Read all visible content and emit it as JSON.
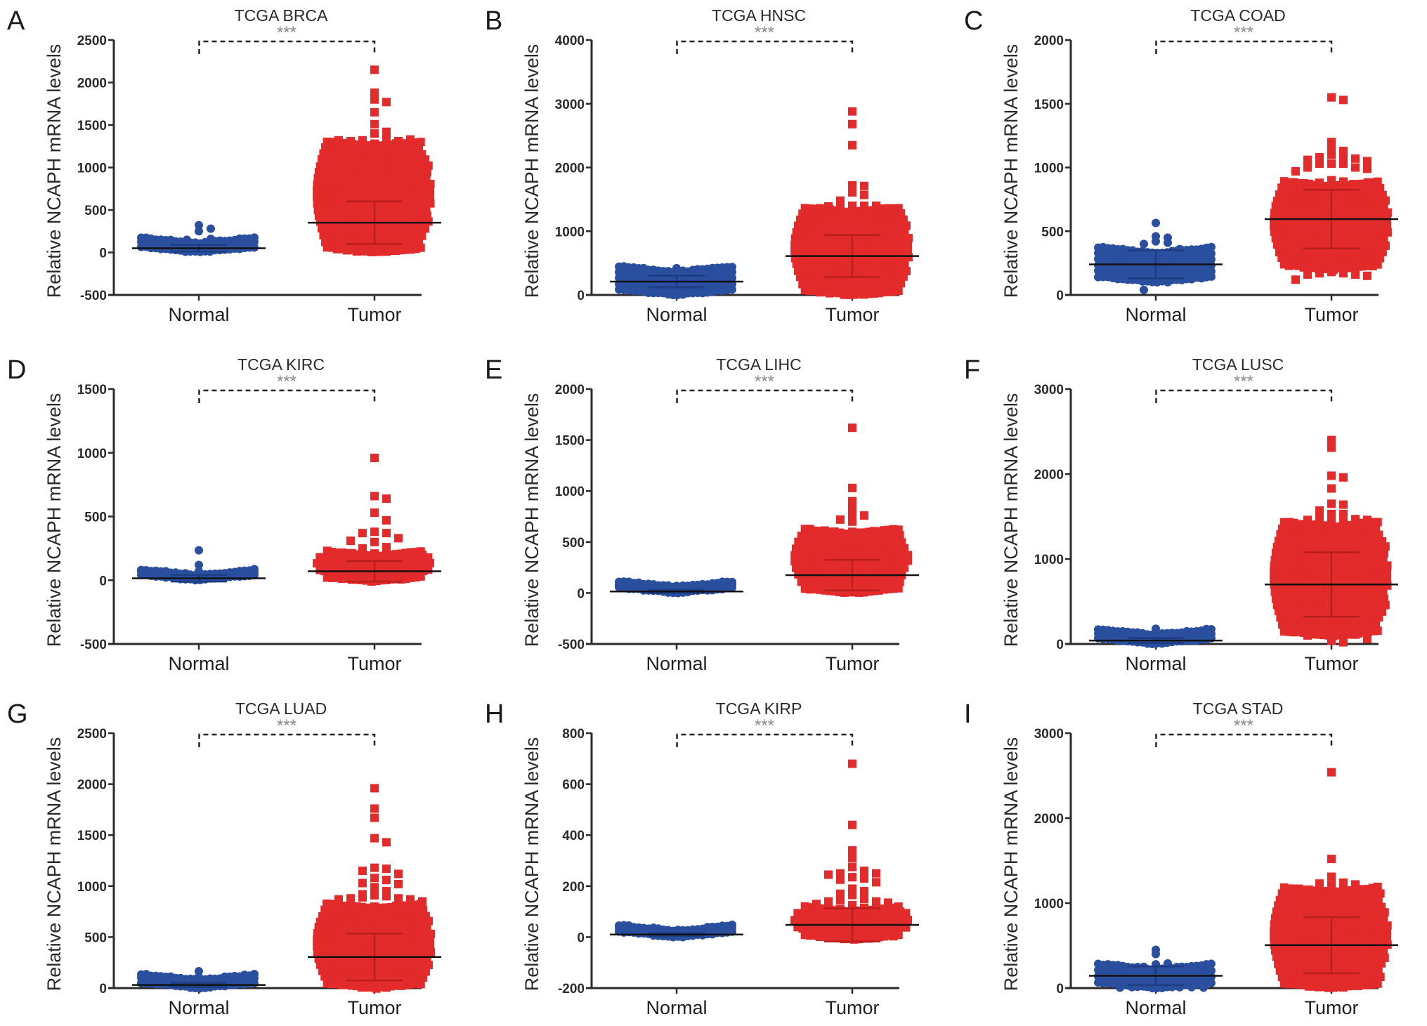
{
  "figure": {
    "y_axis_label": "Relative NCAPH mRNA levels",
    "significance": "***",
    "colors": {
      "normal": "#2a4f9e",
      "tumor": "#e32b2b",
      "axis": "#2b2b2b",
      "mean": "#111111"
    }
  },
  "chart_data": [
    {
      "panel": "A",
      "type": "scatter",
      "title": "TCGA BRCA",
      "xlabel": "",
      "ylabel": "Relative NCAPH mRNA levels",
      "categories": [
        "Normal",
        "Tumor"
      ],
      "ylim": [
        -500,
        2500
      ],
      "yticks": [
        -500,
        0,
        500,
        1000,
        1500,
        2000,
        2500
      ],
      "significance": "***",
      "series": [
        {
          "name": "Normal",
          "marker": "circle",
          "mean": 50,
          "sd": 40,
          "bulk_min": 0,
          "bulk_max": 110,
          "outliers": [
            320,
            280,
            250,
            160,
            150
          ]
        },
        {
          "name": "Tumor",
          "marker": "square",
          "mean": 350,
          "sd": 250,
          "bulk_min": 0,
          "bulk_max": 1250,
          "outliers": [
            2150,
            1880,
            1800,
            1770,
            1650,
            1510,
            1420,
            1400,
            1340,
            1320,
            1310,
            1310,
            1280,
            1330,
            1320,
            1240,
            1220,
            1180,
            1170
          ]
        }
      ]
    },
    {
      "panel": "B",
      "type": "scatter",
      "title": "TCGA HNSC",
      "xlabel": "",
      "ylabel": "Relative NCAPH mRNA levels",
      "categories": [
        "Normal",
        "Tumor"
      ],
      "ylim": [
        0,
        4000
      ],
      "yticks": [
        0,
        1000,
        2000,
        3000,
        4000
      ],
      "significance": "***",
      "series": [
        {
          "name": "Normal",
          "marker": "circle",
          "mean": 210,
          "sd": 90,
          "bulk_min": 0,
          "bulk_max": 360,
          "outliers": [
            420,
            380
          ]
        },
        {
          "name": "Tumor",
          "marker": "square",
          "mean": 610,
          "sd": 330,
          "bulk_min": 0,
          "bulk_max": 1300,
          "outliers": [
            2880,
            2680,
            2350,
            1720,
            1710,
            1610,
            1570,
            1480,
            1400,
            1400,
            1400,
            1400,
            1390
          ]
        }
      ]
    },
    {
      "panel": "C",
      "type": "scatter",
      "title": "TCGA COAD",
      "xlabel": "",
      "ylabel": "Relative NCAPH mRNA levels",
      "categories": [
        "Normal",
        "Tumor"
      ],
      "ylim": [
        0,
        2000
      ],
      "yticks": [
        0,
        500,
        1000,
        1500,
        2000
      ],
      "significance": "***",
      "series": [
        {
          "name": "Normal",
          "marker": "circle",
          "mean": 240,
          "sd": 110,
          "bulk_min": 100,
          "bulk_max": 330,
          "outliers": [
            565,
            460,
            450,
            420,
            410,
            400,
            360,
            320,
            320,
            300,
            300,
            290,
            290,
            280,
            250,
            120,
            110,
            100,
            40
          ]
        },
        {
          "name": "Tumor",
          "marker": "square",
          "mean": 595,
          "sd": 230,
          "bulk_min": 200,
          "bulk_max": 850,
          "outliers": [
            1550,
            1530,
            1200,
            1150,
            1130,
            1100,
            1080,
            1080,
            1070,
            1060,
            1050,
            1030,
            1030,
            1030,
            1000,
            1000,
            990,
            970,
            900,
            890,
            880,
            880,
            880,
            870,
            870,
            860,
            180,
            170,
            170,
            160,
            160,
            150,
            120
          ]
        }
      ]
    },
    {
      "panel": "D",
      "type": "scatter",
      "title": "TCGA KIRC",
      "xlabel": "",
      "ylabel": "Relative NCAPH mRNA levels",
      "categories": [
        "Normal",
        "Tumor"
      ],
      "ylim": [
        -500,
        1500
      ],
      "yticks": [
        -500,
        0,
        500,
        1000,
        1500
      ],
      "significance": "***",
      "series": [
        {
          "name": "Normal",
          "marker": "circle",
          "mean": 15,
          "sd": 25,
          "bulk_min": 0,
          "bulk_max": 40,
          "outliers": [
            235,
            120,
            70
          ]
        },
        {
          "name": "Tumor",
          "marker": "square",
          "mean": 70,
          "sd": 80,
          "bulk_min": -10,
          "bulk_max": 190,
          "outliers": [
            960,
            660,
            640,
            530,
            470,
            380,
            370,
            370,
            330,
            310,
            300,
            260,
            250,
            210,
            200,
            200,
            200,
            200,
            200,
            200,
            200
          ]
        }
      ]
    },
    {
      "panel": "E",
      "type": "scatter",
      "title": "TCGA LIHC",
      "xlabel": "",
      "ylabel": "Relative NCAPH mRNA levels",
      "categories": [
        "Normal",
        "Tumor"
      ],
      "ylim": [
        -500,
        2000
      ],
      "yticks": [
        -500,
        0,
        500,
        1000,
        1500,
        2000
      ],
      "significance": "***",
      "series": [
        {
          "name": "Normal",
          "marker": "circle",
          "mean": 15,
          "sd": 15,
          "bulk_min": 0,
          "bulk_max": 60,
          "outliers": [
            70,
            55
          ]
        },
        {
          "name": "Tumor",
          "marker": "square",
          "mean": 175,
          "sd": 150,
          "bulk_min": 0,
          "bulk_max": 580,
          "outliers": [
            1620,
            1030,
            900,
            830,
            780,
            760,
            720,
            700,
            600,
            590
          ]
        }
      ]
    },
    {
      "panel": "F",
      "type": "scatter",
      "title": "TCGA LUSC",
      "xlabel": "",
      "ylabel": "Relative NCAPH mRNA levels",
      "categories": [
        "Normal",
        "Tumor"
      ],
      "ylim": [
        0,
        3000
      ],
      "yticks": [
        0,
        1000,
        2000,
        3000
      ],
      "significance": "***",
      "series": [
        {
          "name": "Normal",
          "marker": "circle",
          "mean": 40,
          "sd": 30,
          "bulk_min": 0,
          "bulk_max": 110,
          "outliers": [
            180,
            110,
            100
          ]
        },
        {
          "name": "Tumor",
          "marker": "square",
          "mean": 700,
          "sd": 380,
          "bulk_min": 100,
          "bulk_max": 1380,
          "outliers": [
            2400,
            2310,
            1980,
            1960,
            1830,
            1650,
            1640,
            1570,
            1530,
            1530,
            1480,
            1470,
            1460,
            1460,
            1440,
            1430,
            1420,
            1410,
            1400,
            1380,
            140,
            130,
            120,
            110,
            100,
            60,
            40,
            20
          ]
        }
      ]
    },
    {
      "panel": "G",
      "type": "scatter",
      "title": "TCGA LUAD",
      "xlabel": "",
      "ylabel": "Relative NCAPH mRNA levels",
      "categories": [
        "Normal",
        "Tumor"
      ],
      "ylim": [
        0,
        2500
      ],
      "yticks": [
        0,
        500,
        1000,
        1500,
        2000,
        2500
      ],
      "significance": "***",
      "series": [
        {
          "name": "Normal",
          "marker": "circle",
          "mean": 30,
          "sd": 20,
          "bulk_min": 0,
          "bulk_max": 80,
          "outliers": [
            165,
            110,
            75
          ]
        },
        {
          "name": "Tumor",
          "marker": "square",
          "mean": 305,
          "sd": 230,
          "bulk_min": 0,
          "bulk_max": 780,
          "outliers": [
            1960,
            1760,
            1670,
            1470,
            1430,
            1180,
            1170,
            1150,
            1120,
            1080,
            1060,
            1030,
            1020,
            990,
            950,
            920,
            910,
            900,
            890,
            880,
            880,
            870,
            870,
            850,
            820,
            800
          ]
        }
      ]
    },
    {
      "panel": "H",
      "type": "scatter",
      "title": "TCGA KIRP",
      "xlabel": "",
      "ylabel": "Relative NCAPH mRNA levels",
      "categories": [
        "Normal",
        "Tumor"
      ],
      "ylim": [
        -200,
        800
      ],
      "yticks": [
        -200,
        0,
        200,
        400,
        600,
        800
      ],
      "significance": "***",
      "series": [
        {
          "name": "Normal",
          "marker": "circle",
          "mean": 10,
          "sd": 5,
          "bulk_min": 0,
          "bulk_max": 25,
          "outliers": [
            25,
            22
          ]
        },
        {
          "name": "Tumor",
          "marker": "square",
          "mean": 48,
          "sd": 65,
          "bulk_min": -10,
          "bulk_max": 100,
          "outliers": [
            680,
            440,
            340,
            310,
            275,
            260,
            250,
            250,
            245,
            235,
            230,
            225,
            215,
            190,
            180,
            170,
            165,
            150,
            145,
            140,
            140,
            135,
            130,
            125,
            115,
            110,
            110,
            110,
            110,
            105,
            100
          ]
        }
      ]
    },
    {
      "panel": "I",
      "type": "scatter",
      "title": "TCGA STAD",
      "xlabel": "",
      "ylabel": "Relative NCAPH mRNA levels",
      "categories": [
        "Normal",
        "Tumor"
      ],
      "ylim": [
        0,
        3000
      ],
      "yticks": [
        0,
        1000,
        2000,
        3000
      ],
      "significance": "***",
      "series": [
        {
          "name": "Normal",
          "marker": "circle",
          "mean": 145,
          "sd": 110,
          "bulk_min": 0,
          "bulk_max": 220,
          "outliers": [
            450,
            400,
            290,
            280,
            270,
            250,
            220,
            210,
            200,
            190,
            60,
            50,
            30,
            20,
            10,
            10,
            10,
            5,
            5
          ]
        },
        {
          "name": "Tumor",
          "marker": "square",
          "mean": 505,
          "sd": 330,
          "bulk_min": 0,
          "bulk_max": 1130,
          "outliers": [
            2540,
            1520,
            1310,
            1240,
            1230,
            1220,
            1210,
            1200,
            1180,
            1160,
            1150,
            1140,
            1120
          ]
        }
      ]
    }
  ]
}
